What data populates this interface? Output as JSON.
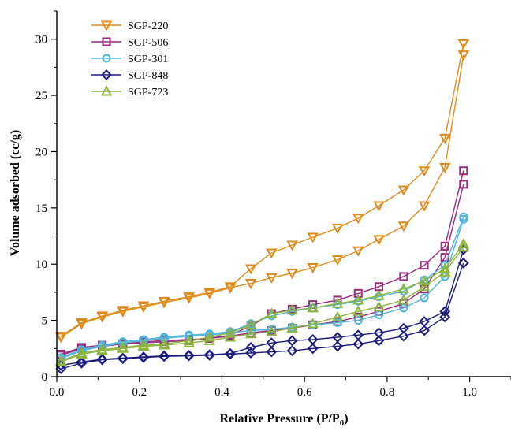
{
  "chart_data": {
    "type": "scatter",
    "xlabel": "Relative Pressure (P/P",
    "xlabel_subscript": "0",
    "xlabel_suffix": ")",
    "ylabel": "Volume adsorbed (cc/g)",
    "xlim": [
      0.0,
      1.1
    ],
    "ylim": [
      0,
      32.5
    ],
    "x_ticks": [
      0.0,
      0.2,
      0.4,
      0.6,
      0.8,
      1.0
    ],
    "x_tick_labels": [
      "0.0",
      "0.2",
      "0.4",
      "0.6",
      "0.8",
      "1.0"
    ],
    "y_ticks": [
      0,
      5,
      10,
      15,
      20,
      25,
      30
    ],
    "y_tick_labels": [
      "0",
      "5",
      "10",
      "15",
      "20",
      "25",
      "30"
    ],
    "grid": false,
    "legend_position": "top-left",
    "series": [
      {
        "name": "SGP-220",
        "marker": "triangle-down",
        "color": "#e08c1c",
        "adsorption": [
          [
            0.01,
            3.5
          ],
          [
            0.06,
            4.7
          ],
          [
            0.11,
            5.3
          ],
          [
            0.16,
            5.8
          ],
          [
            0.21,
            6.2
          ],
          [
            0.26,
            6.6
          ],
          [
            0.32,
            7.0
          ],
          [
            0.37,
            7.4
          ],
          [
            0.42,
            7.9
          ],
          [
            0.47,
            8.3
          ],
          [
            0.52,
            8.8
          ],
          [
            0.57,
            9.2
          ],
          [
            0.62,
            9.7
          ],
          [
            0.68,
            10.4
          ],
          [
            0.73,
            11.2
          ],
          [
            0.78,
            12.2
          ],
          [
            0.84,
            13.4
          ],
          [
            0.89,
            15.2
          ],
          [
            0.94,
            18.6
          ],
          [
            0.985,
            28.6
          ]
        ],
        "desorption": [
          [
            0.985,
            29.6
          ],
          [
            0.94,
            21.2
          ],
          [
            0.89,
            18.3
          ],
          [
            0.84,
            16.6
          ],
          [
            0.78,
            15.2
          ],
          [
            0.73,
            14.1
          ],
          [
            0.68,
            13.2
          ],
          [
            0.62,
            12.4
          ],
          [
            0.57,
            11.7
          ],
          [
            0.52,
            11.0
          ],
          [
            0.47,
            9.6
          ],
          [
            0.42,
            8.0
          ],
          [
            0.37,
            7.5
          ],
          [
            0.32,
            7.1
          ],
          [
            0.26,
            6.7
          ],
          [
            0.21,
            6.3
          ],
          [
            0.16,
            5.9
          ],
          [
            0.11,
            5.4
          ],
          [
            0.06,
            4.8
          ],
          [
            0.01,
            3.6
          ]
        ]
      },
      {
        "name": "SGP-506",
        "marker": "square",
        "color": "#9a2a7a",
        "adsorption": [
          [
            0.01,
            1.9
          ],
          [
            0.06,
            2.5
          ],
          [
            0.11,
            2.7
          ],
          [
            0.16,
            2.9
          ],
          [
            0.21,
            3.0
          ],
          [
            0.26,
            3.1
          ],
          [
            0.32,
            3.2
          ],
          [
            0.37,
            3.4
          ],
          [
            0.42,
            3.6
          ],
          [
            0.47,
            3.9
          ],
          [
            0.52,
            4.1
          ],
          [
            0.57,
            4.3
          ],
          [
            0.62,
            4.6
          ],
          [
            0.68,
            4.9
          ],
          [
            0.73,
            5.3
          ],
          [
            0.78,
            5.8
          ],
          [
            0.84,
            6.5
          ],
          [
            0.89,
            7.8
          ],
          [
            0.94,
            10.6
          ],
          [
            0.985,
            17.1
          ]
        ],
        "desorption": [
          [
            0.985,
            18.3
          ],
          [
            0.94,
            11.6
          ],
          [
            0.89,
            9.9
          ],
          [
            0.84,
            8.9
          ],
          [
            0.78,
            8.0
          ],
          [
            0.73,
            7.4
          ],
          [
            0.68,
            6.8
          ],
          [
            0.62,
            6.4
          ],
          [
            0.57,
            6.0
          ],
          [
            0.52,
            5.6
          ],
          [
            0.47,
            4.5
          ],
          [
            0.42,
            3.7
          ],
          [
            0.37,
            3.4
          ],
          [
            0.32,
            3.3
          ],
          [
            0.26,
            3.2
          ],
          [
            0.21,
            3.1
          ],
          [
            0.16,
            2.9
          ],
          [
            0.11,
            2.8
          ],
          [
            0.06,
            2.6
          ],
          [
            0.01,
            2.0
          ]
        ]
      },
      {
        "name": "SGP-301",
        "marker": "circle",
        "color": "#4fb4d8",
        "adsorption": [
          [
            0.01,
            1.6
          ],
          [
            0.06,
            2.3
          ],
          [
            0.11,
            2.7
          ],
          [
            0.16,
            3.0
          ],
          [
            0.21,
            3.2
          ],
          [
            0.26,
            3.4
          ],
          [
            0.32,
            3.6
          ],
          [
            0.37,
            3.7
          ],
          [
            0.42,
            3.9
          ],
          [
            0.47,
            4.1
          ],
          [
            0.52,
            4.2
          ],
          [
            0.57,
            4.4
          ],
          [
            0.62,
            4.6
          ],
          [
            0.68,
            4.8
          ],
          [
            0.73,
            5.0
          ],
          [
            0.78,
            5.5
          ],
          [
            0.84,
            6.1
          ],
          [
            0.89,
            7.0
          ],
          [
            0.94,
            8.9
          ],
          [
            0.985,
            14.0
          ]
        ],
        "desorption": [
          [
            0.985,
            14.2
          ],
          [
            0.94,
            9.9
          ],
          [
            0.89,
            8.6
          ],
          [
            0.84,
            7.6
          ],
          [
            0.78,
            7.1
          ],
          [
            0.73,
            6.7
          ],
          [
            0.68,
            6.4
          ],
          [
            0.62,
            6.1
          ],
          [
            0.57,
            5.8
          ],
          [
            0.52,
            5.4
          ],
          [
            0.47,
            4.7
          ],
          [
            0.42,
            4.0
          ],
          [
            0.37,
            3.8
          ],
          [
            0.32,
            3.7
          ],
          [
            0.26,
            3.5
          ],
          [
            0.21,
            3.3
          ],
          [
            0.16,
            3.1
          ],
          [
            0.11,
            2.8
          ],
          [
            0.06,
            2.4
          ],
          [
            0.01,
            1.7
          ]
        ]
      },
      {
        "name": "SGP-848",
        "marker": "diamond",
        "color": "#1c1c80",
        "adsorption": [
          [
            0.01,
            0.7
          ],
          [
            0.06,
            1.2
          ],
          [
            0.11,
            1.5
          ],
          [
            0.16,
            1.6
          ],
          [
            0.21,
            1.7
          ],
          [
            0.26,
            1.8
          ],
          [
            0.32,
            1.85
          ],
          [
            0.37,
            1.9
          ],
          [
            0.42,
            2.0
          ],
          [
            0.47,
            2.1
          ],
          [
            0.52,
            2.2
          ],
          [
            0.57,
            2.3
          ],
          [
            0.62,
            2.5
          ],
          [
            0.68,
            2.7
          ],
          [
            0.73,
            2.9
          ],
          [
            0.78,
            3.2
          ],
          [
            0.84,
            3.6
          ],
          [
            0.89,
            4.1
          ],
          [
            0.94,
            5.3
          ],
          [
            0.985,
            10.1
          ]
        ],
        "desorption": [
          [
            0.985,
            11.3
          ],
          [
            0.94,
            5.8
          ],
          [
            0.89,
            4.9
          ],
          [
            0.84,
            4.3
          ],
          [
            0.78,
            3.9
          ],
          [
            0.73,
            3.7
          ],
          [
            0.68,
            3.5
          ],
          [
            0.62,
            3.3
          ],
          [
            0.57,
            3.2
          ],
          [
            0.52,
            3.0
          ],
          [
            0.47,
            2.6
          ],
          [
            0.42,
            2.05
          ],
          [
            0.37,
            1.95
          ],
          [
            0.32,
            1.9
          ],
          [
            0.26,
            1.85
          ],
          [
            0.21,
            1.75
          ],
          [
            0.16,
            1.65
          ],
          [
            0.11,
            1.55
          ],
          [
            0.06,
            1.3
          ],
          [
            0.01,
            1.0
          ]
        ]
      },
      {
        "name": "SGP-723",
        "marker": "triangle-up",
        "color": "#8cb43c",
        "adsorption": [
          [
            0.01,
            1.3
          ],
          [
            0.06,
            2.0
          ],
          [
            0.11,
            2.3
          ],
          [
            0.16,
            2.5
          ],
          [
            0.21,
            2.7
          ],
          [
            0.26,
            2.8
          ],
          [
            0.32,
            3.0
          ],
          [
            0.37,
            3.2
          ],
          [
            0.42,
            3.5
          ],
          [
            0.47,
            3.8
          ],
          [
            0.52,
            4.0
          ],
          [
            0.57,
            4.3
          ],
          [
            0.62,
            4.7
          ],
          [
            0.68,
            5.3
          ],
          [
            0.73,
            5.8
          ],
          [
            0.78,
            6.2
          ],
          [
            0.84,
            6.8
          ],
          [
            0.89,
            8.0
          ],
          [
            0.94,
            9.3
          ],
          [
            0.985,
            11.5
          ]
        ],
        "desorption": [
          [
            0.985,
            11.8
          ],
          [
            0.94,
            9.6
          ],
          [
            0.89,
            8.5
          ],
          [
            0.84,
            7.8
          ],
          [
            0.78,
            7.2
          ],
          [
            0.73,
            6.8
          ],
          [
            0.68,
            6.5
          ],
          [
            0.62,
            6.1
          ],
          [
            0.57,
            5.9
          ],
          [
            0.52,
            5.6
          ],
          [
            0.47,
            4.6
          ],
          [
            0.42,
            3.9
          ],
          [
            0.37,
            3.5
          ],
          [
            0.32,
            3.2
          ],
          [
            0.26,
            2.9
          ],
          [
            0.21,
            2.8
          ],
          [
            0.16,
            2.6
          ],
          [
            0.11,
            2.4
          ],
          [
            0.06,
            2.1
          ],
          [
            0.01,
            1.4
          ]
        ]
      }
    ]
  }
}
